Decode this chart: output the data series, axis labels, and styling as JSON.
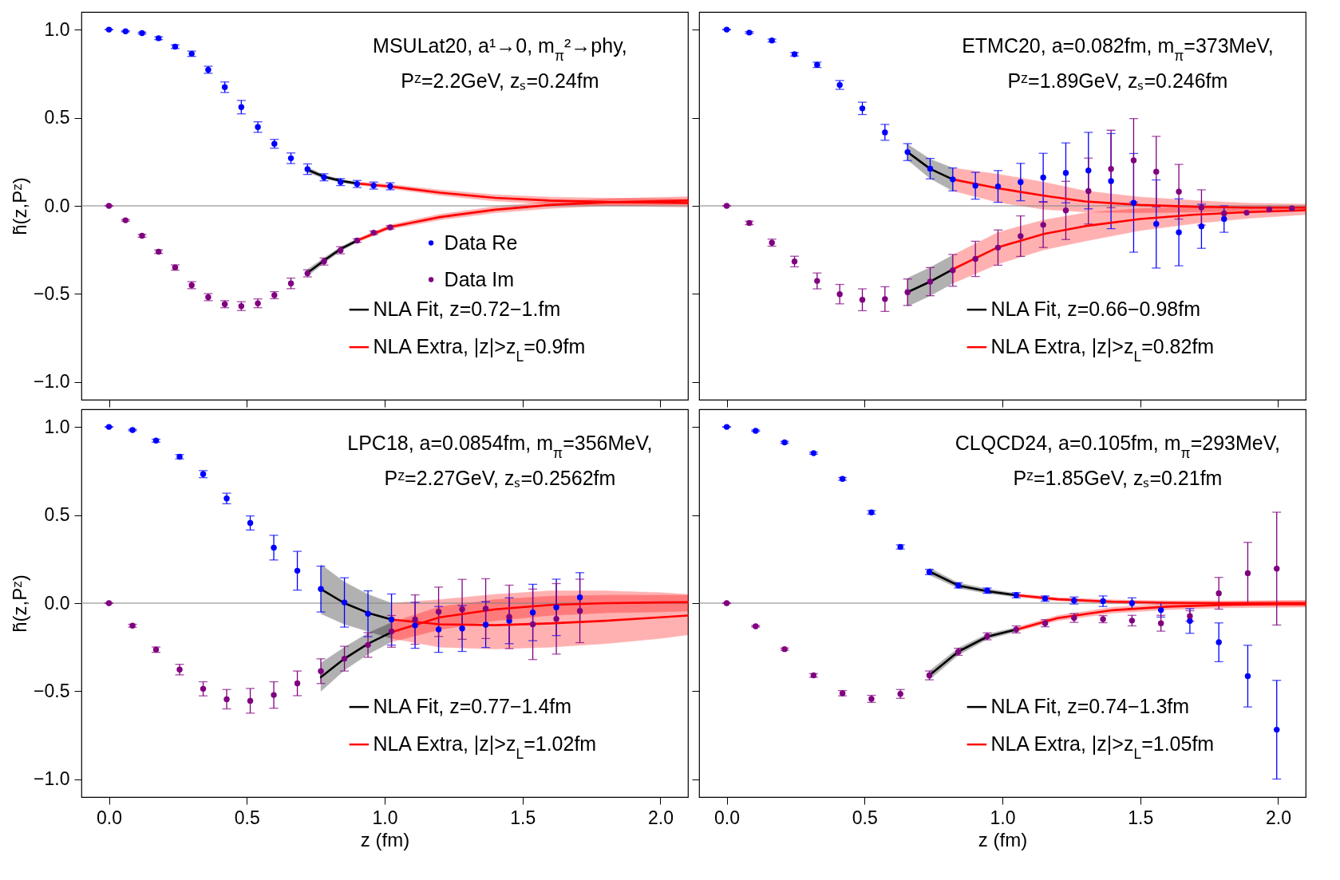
{
  "chart_data": [
    {
      "type": "scatter",
      "legend": "bottom right",
      "tick_labels": "y",
      "ylabel": "h̃(z,Pᶻ)",
      "xlim": [
        -0.1,
        2.1
      ],
      "ylim": [
        -1.1,
        1.1
      ],
      "xticks": [
        0,
        0.5,
        1,
        1.5,
        2
      ],
      "yticks": [
        {
          "value": -1,
          "label": "−1.0"
        },
        {
          "value": -0.5,
          "label": "−0.5"
        },
        {
          "value": 0,
          "label": "0.0"
        },
        {
          "value": 0.5,
          "label": "0.5"
        },
        {
          "value": 1,
          "label": "1.0"
        }
      ],
      "annotations": [
        "MSULat20, a¹→0, m$_{π}$²→phy,",
        "Pᶻ=2.2GeV, zₛ=0.24fm"
      ],
      "ref_lines": [
        {
          "axis": "y",
          "value": 0,
          "color": "#808080"
        }
      ],
      "series": [
        {
          "name": "Data Re",
          "type": "scatter",
          "marker": "circle",
          "color": "#0000ff",
          "x": [
            0,
            0.06,
            0.12,
            0.18,
            0.24,
            0.3,
            0.36,
            0.42,
            0.48,
            0.54,
            0.6,
            0.66,
            0.72,
            0.78,
            0.84,
            0.9,
            0.96,
            1.02
          ],
          "values": [
            1.0,
            0.99,
            0.98,
            0.951,
            0.903,
            0.863,
            0.772,
            0.673,
            0.56,
            0.447,
            0.352,
            0.27,
            0.208,
            0.162,
            0.135,
            0.124,
            0.115,
            0.111
          ],
          "errors": [
            0,
            0.003,
            0.005,
            0.008,
            0.01,
            0.015,
            0.02,
            0.03,
            0.038,
            0.03,
            0.025,
            0.03,
            0.03,
            0.02,
            0.02,
            0.02,
            0.02,
            0.02
          ]
        },
        {
          "name": "Data Im",
          "type": "scatter",
          "marker": "circle",
          "color": "#800080",
          "x": [
            0,
            0.06,
            0.12,
            0.18,
            0.24,
            0.3,
            0.36,
            0.42,
            0.48,
            0.54,
            0.6,
            0.66,
            0.72,
            0.78,
            0.84,
            0.9,
            0.96,
            1.02
          ],
          "values": [
            0,
            -0.082,
            -0.17,
            -0.26,
            -0.35,
            -0.45,
            -0.518,
            -0.558,
            -0.569,
            -0.553,
            -0.507,
            -0.44,
            -0.383,
            -0.316,
            -0.252,
            -0.197,
            -0.153,
            -0.122
          ],
          "errors": [
            0,
            0.005,
            0.008,
            0.01,
            0.015,
            0.02,
            0.02,
            0.02,
            0.025,
            0.025,
            0.02,
            0.03,
            0.02,
            0.02,
            0.02,
            0.01,
            0.01,
            0.01
          ]
        },
        {
          "name": "NLA Fit, z=0.72−1.fm",
          "type": "line",
          "color": "#000000",
          "x": [
            0.72,
            0.78,
            0.84,
            0.9
          ],
          "values": [
            0.205,
            0.165,
            0.142,
            0.127
          ],
          "lower": [
            0.19,
            0.155,
            0.133,
            0.118
          ],
          "upper": [
            0.22,
            0.175,
            0.151,
            0.136
          ]
        },
        {
          "type": "line",
          "color": "#000000",
          "x": [
            0.72,
            0.78,
            0.84,
            0.9
          ],
          "values": [
            -0.38,
            -0.31,
            -0.245,
            -0.197
          ],
          "lower": [
            -0.4,
            -0.325,
            -0.257,
            -0.207
          ],
          "upper": [
            -0.36,
            -0.295,
            -0.233,
            -0.187
          ]
        },
        {
          "name": "NLA Extra, |z|>z$_{L}$=0.9fm",
          "type": "line",
          "color": "#ff0000",
          "x": [
            0.9,
            1.02,
            1.2,
            1.4,
            1.6,
            1.8,
            2.0,
            2.1
          ],
          "values": [
            0.127,
            0.11,
            0.075,
            0.045,
            0.03,
            0.022,
            0.018,
            0.016
          ],
          "lower": [
            0.118,
            0.098,
            0.06,
            0.027,
            0.01,
            0.0,
            -0.005,
            -0.007
          ],
          "upper": [
            0.136,
            0.122,
            0.09,
            0.063,
            0.05,
            0.044,
            0.041,
            0.039
          ]
        },
        {
          "type": "line",
          "color": "#ff0000",
          "x": [
            0.9,
            1.02,
            1.2,
            1.4,
            1.6,
            1.8,
            2.0,
            2.1
          ],
          "values": [
            -0.197,
            -0.12,
            -0.064,
            -0.022,
            0.005,
            0.02,
            0.027,
            0.03
          ],
          "lower": [
            -0.207,
            -0.132,
            -0.08,
            -0.04,
            -0.015,
            0.0,
            0.005,
            0.008
          ],
          "upper": [
            -0.187,
            -0.108,
            -0.048,
            -0.004,
            0.025,
            0.04,
            0.049,
            0.052
          ]
        }
      ]
    },
    {
      "type": "scatter",
      "legend": "bottom right",
      "tick_labels": false,
      "xlim": [
        -0.1,
        2.1
      ],
      "ylim": [
        -1.1,
        1.1
      ],
      "xticks": [
        0,
        0.5,
        1,
        1.5,
        2
      ],
      "yticks": [
        -1,
        -0.5,
        0,
        0.5,
        1
      ],
      "annotations": [
        "ETMC20, a=0.082fm, m$_{π}$=373MeV,",
        "Pᶻ=1.89GeV, zₛ=0.246fm"
      ],
      "ref_lines": [
        {
          "axis": "y",
          "value": 0,
          "color": "#808080"
        }
      ],
      "series": [
        {
          "type": "scatter",
          "marker": "circle",
          "color": "#0000ff",
          "x": [
            0,
            0.082,
            0.164,
            0.246,
            0.328,
            0.41,
            0.492,
            0.574,
            0.656,
            0.738,
            0.82,
            0.902,
            0.984,
            1.066,
            1.148,
            1.23,
            1.312,
            1.394,
            1.476,
            1.558,
            1.64,
            1.722,
            1.804
          ],
          "values": [
            1.0,
            0.983,
            0.938,
            0.86,
            0.8,
            0.686,
            0.553,
            0.417,
            0.305,
            0.211,
            0.15,
            0.114,
            0.11,
            0.135,
            0.161,
            0.187,
            0.2,
            0.14,
            0.017,
            -0.103,
            -0.15,
            -0.116,
            -0.075
          ],
          "errors": [
            0,
            0.005,
            0.008,
            0.01,
            0.015,
            0.025,
            0.035,
            0.045,
            0.048,
            0.058,
            0.065,
            0.076,
            0.09,
            0.106,
            0.137,
            0.17,
            0.217,
            0.27,
            0.28,
            0.25,
            0.19,
            0.125,
            0.075
          ]
        },
        {
          "type": "scatter",
          "marker": "circle",
          "color": "#800080",
          "x": [
            0,
            0.082,
            0.164,
            0.246,
            0.328,
            0.41,
            0.492,
            0.574,
            0.656,
            0.738,
            0.82,
            0.902,
            0.984,
            1.066,
            1.148,
            1.23,
            1.312,
            1.394,
            1.476,
            1.558,
            1.64,
            1.722,
            1.804,
            1.886,
            1.968,
            2.05
          ],
          "values": [
            0,
            -0.097,
            -0.209,
            -0.316,
            -0.426,
            -0.501,
            -0.533,
            -0.529,
            -0.49,
            -0.43,
            -0.366,
            -0.301,
            -0.237,
            -0.172,
            -0.108,
            -0.026,
            0.084,
            0.209,
            0.258,
            0.194,
            0.08,
            -0.009,
            -0.043,
            -0.039,
            -0.02,
            -0.015
          ],
          "errors": [
            0,
            0.01,
            0.02,
            0.03,
            0.045,
            0.055,
            0.062,
            0.07,
            0.075,
            0.08,
            0.09,
            0.1,
            0.1,
            0.115,
            0.128,
            0.165,
            0.187,
            0.22,
            0.237,
            0.2,
            0.155,
            0.1,
            null,
            null,
            null,
            null
          ]
        },
        {
          "name": "NLA Fit, z=0.66−0.98fm",
          "type": "line",
          "color": "#000000",
          "x": [
            0.656,
            0.738,
            0.82
          ],
          "values": [
            0.305,
            0.21,
            0.15
          ],
          "lower": [
            0.26,
            0.155,
            0.085
          ],
          "upper": [
            0.35,
            0.265,
            0.215
          ]
        },
        {
          "type": "line",
          "color": "#000000",
          "x": [
            0.656,
            0.738,
            0.82
          ],
          "values": [
            -0.49,
            -0.43,
            -0.36
          ],
          "lower": [
            -0.57,
            -0.51,
            -0.44
          ],
          "upper": [
            -0.41,
            -0.35,
            -0.28
          ]
        },
        {
          "name": "NLA Extra, |z|>z$_{L}$=0.82fm",
          "type": "line",
          "color": "#ff0000",
          "x": [
            0.82,
            0.984,
            1.15,
            1.3,
            1.5,
            1.7,
            1.9,
            2.1
          ],
          "values": [
            0.15,
            0.1,
            0.058,
            0.025,
            0.005,
            -0.005,
            -0.01,
            -0.01
          ],
          "lower": [
            0.085,
            0.02,
            -0.02,
            -0.035,
            -0.04,
            -0.035,
            -0.03,
            -0.025
          ],
          "upper": [
            0.215,
            0.18,
            0.135,
            0.085,
            0.05,
            0.03,
            0.015,
            0.01
          ]
        },
        {
          "type": "line",
          "color": "#ff0000",
          "x": [
            0.82,
            0.984,
            1.15,
            1.3,
            1.5,
            1.7,
            1.9,
            2.1
          ],
          "values": [
            -0.36,
            -0.235,
            -0.16,
            -0.115,
            -0.075,
            -0.05,
            -0.035,
            -0.025
          ],
          "lower": [
            -0.44,
            -0.33,
            -0.25,
            -0.2,
            -0.14,
            -0.1,
            -0.07,
            -0.05
          ],
          "upper": [
            -0.28,
            -0.15,
            -0.08,
            -0.04,
            -0.015,
            -0.005,
            0.0,
            0.0
          ]
        }
      ]
    },
    {
      "type": "scatter",
      "legend": "bottom right",
      "xlabel": "z (fm)",
      "ylabel": "h̃(z,Pᶻ)",
      "xlim": [
        -0.1,
        2.1
      ],
      "ylim": [
        -1.1,
        1.1
      ],
      "xticks": [
        {
          "value": 0,
          "label": "0.0"
        },
        {
          "value": 0.5,
          "label": "0.5"
        },
        {
          "value": 1,
          "label": "1.0"
        },
        {
          "value": 1.5,
          "label": "1.5"
        },
        {
          "value": 2,
          "label": "2.0"
        }
      ],
      "yticks": [
        {
          "value": -1,
          "label": "−1.0"
        },
        {
          "value": -0.5,
          "label": "−0.5"
        },
        {
          "value": 0,
          "label": "0.0"
        },
        {
          "value": 0.5,
          "label": "0.5"
        },
        {
          "value": 1,
          "label": "1.0"
        }
      ],
      "annotations": [
        "LPC18, a=0.0854fm, m$_{π}$=356MeV,",
        "Pᶻ=2.27GeV, zₛ=0.2562fm"
      ],
      "ref_lines": [
        {
          "axis": "y",
          "value": 0,
          "color": "#808080"
        }
      ],
      "series": [
        {
          "type": "scatter",
          "marker": "circle",
          "color": "#0000ff",
          "x": [
            0,
            0.0854,
            0.1708,
            0.2562,
            0.3416,
            0.427,
            0.5124,
            0.5978,
            0.6832,
            0.7686,
            0.854,
            0.9394,
            1.0248,
            1.1102,
            1.1956,
            1.281,
            1.3664,
            1.4518,
            1.5372,
            1.6226,
            1.708
          ],
          "values": [
            1.0,
            0.982,
            0.922,
            0.831,
            0.732,
            0.594,
            0.455,
            0.315,
            0.184,
            0.08,
            0.004,
            -0.06,
            -0.093,
            -0.126,
            -0.149,
            -0.144,
            -0.122,
            -0.1,
            -0.053,
            -0.024,
            0.033
          ],
          "errors": [
            0,
            0.004,
            0.008,
            0.012,
            0.02,
            0.03,
            0.04,
            0.07,
            0.11,
            0.13,
            0.14,
            0.13,
            0.145,
            0.13,
            0.13,
            0.13,
            0.13,
            0.13,
            0.16,
            0.16,
            0.14
          ]
        },
        {
          "type": "scatter",
          "marker": "circle",
          "color": "#800080",
          "x": [
            0,
            0.0854,
            0.1708,
            0.2562,
            0.3416,
            0.427,
            0.5124,
            0.5978,
            0.6832,
            0.7686,
            0.854,
            0.9394,
            1.0248,
            1.1102,
            1.1956,
            1.281,
            1.3664,
            1.4518,
            1.5372,
            1.6226,
            1.708
          ],
          "values": [
            0,
            -0.128,
            -0.264,
            -0.377,
            -0.486,
            -0.545,
            -0.554,
            -0.521,
            -0.455,
            -0.386,
            -0.315,
            -0.237,
            -0.16,
            -0.093,
            -0.049,
            -0.035,
            -0.031,
            -0.078,
            -0.12,
            -0.089,
            -0.044
          ],
          "errors": [
            0,
            0.008,
            0.015,
            0.03,
            0.04,
            0.055,
            0.07,
            0.075,
            0.07,
            0.07,
            0.07,
            0.07,
            0.09,
            0.14,
            0.14,
            0.17,
            0.17,
            0.18,
            0.2,
            0.2,
            0.18
          ]
        },
        {
          "name": "NLA Fit, z=0.77−1.4fm",
          "type": "line",
          "color": "#000000",
          "x": [
            0.7686,
            0.854,
            0.9394,
            1.0248
          ],
          "values": [
            0.08,
            0.0,
            -0.055,
            -0.093
          ],
          "lower": [
            -0.06,
            -0.12,
            -0.16,
            -0.2
          ],
          "upper": [
            0.22,
            0.12,
            0.05,
            0.0
          ]
        },
        {
          "type": "line",
          "color": "#000000",
          "x": [
            0.7686,
            0.854,
            0.9394,
            1.0248
          ],
          "values": [
            -0.42,
            -0.315,
            -0.23,
            -0.165
          ],
          "lower": [
            -0.5,
            -0.38,
            -0.29,
            -0.22
          ],
          "upper": [
            -0.34,
            -0.25,
            -0.17,
            -0.11
          ]
        },
        {
          "name": "NLA Extra, |z|>z$_{L}$=1.02fm",
          "type": "line",
          "color": "#ff0000",
          "x": [
            1.0248,
            1.2,
            1.4,
            1.6,
            1.8,
            2.0,
            2.1
          ],
          "values": [
            -0.093,
            -0.12,
            -0.125,
            -0.115,
            -0.1,
            -0.08,
            -0.07
          ],
          "lower": [
            -0.2,
            -0.25,
            -0.26,
            -0.25,
            -0.23,
            -0.2,
            -0.18
          ],
          "upper": [
            0.0,
            0.02,
            0.05,
            0.07,
            0.07,
            0.06,
            0.05
          ]
        },
        {
          "type": "line",
          "color": "#ff0000",
          "x": [
            1.0248,
            1.2,
            1.4,
            1.6,
            1.8,
            2.0,
            2.1
          ],
          "values": [
            -0.165,
            -0.08,
            -0.035,
            -0.01,
            0.0,
            0.004,
            0.005
          ],
          "lower": [
            -0.22,
            -0.15,
            -0.1,
            -0.07,
            -0.055,
            -0.05,
            -0.045
          ],
          "upper": [
            -0.11,
            -0.02,
            0.02,
            0.04,
            0.045,
            0.045,
            0.045
          ]
        }
      ]
    },
    {
      "type": "scatter",
      "legend": "bottom right",
      "tick_labels": "x",
      "xlabel": "z (fm)",
      "xlim": [
        -0.1,
        2.1
      ],
      "ylim": [
        -1.1,
        1.1
      ],
      "xticks": [
        {
          "value": 0,
          "label": "0.0"
        },
        {
          "value": 0.5,
          "label": "0.5"
        },
        {
          "value": 1,
          "label": "1.0"
        },
        {
          "value": 1.5,
          "label": "1.5"
        },
        {
          "value": 2,
          "label": "2.0"
        }
      ],
      "yticks": [
        -1,
        -0.5,
        0,
        0.5,
        1
      ],
      "annotations": [
        "CLQCD24, a=0.105fm, m$_{π}$=293MeV,",
        "Pᶻ=1.85GeV, zₛ=0.21fm"
      ],
      "ref_lines": [
        {
          "axis": "y",
          "value": 0,
          "color": "#808080"
        }
      ],
      "series": [
        {
          "type": "scatter",
          "marker": "circle",
          "color": "#0000ff",
          "x": [
            0,
            0.105,
            0.21,
            0.315,
            0.42,
            0.525,
            0.63,
            0.735,
            0.84,
            0.945,
            1.05,
            1.155,
            1.26,
            1.365,
            1.47,
            1.575,
            1.68,
            1.785,
            1.89,
            1.995
          ],
          "values": [
            1.0,
            0.978,
            0.912,
            0.851,
            0.705,
            0.515,
            0.319,
            0.177,
            0.101,
            0.071,
            0.045,
            0.026,
            0.015,
            0.011,
            0.0,
            -0.039,
            -0.101,
            -0.222,
            -0.414,
            -0.718
          ],
          "errors": [
            0,
            0.004,
            0.006,
            0.006,
            0.008,
            0.01,
            0.012,
            0.015,
            0.015,
            0.015,
            0.015,
            0.015,
            0.02,
            0.03,
            0.03,
            0.04,
            0.07,
            0.11,
            0.175,
            0.28
          ]
        },
        {
          "type": "scatter",
          "marker": "circle",
          "color": "#800080",
          "x": [
            0,
            0.105,
            0.21,
            0.315,
            0.42,
            0.525,
            0.63,
            0.735,
            0.84,
            0.945,
            1.05,
            1.155,
            1.26,
            1.365,
            1.47,
            1.575,
            1.68,
            1.785,
            1.89,
            1.995
          ],
          "values": [
            0,
            -0.131,
            -0.261,
            -0.41,
            -0.511,
            -0.543,
            -0.515,
            -0.41,
            -0.276,
            -0.188,
            -0.149,
            -0.114,
            -0.084,
            -0.091,
            -0.099,
            -0.114,
            -0.073,
            0.056,
            0.17,
            0.196
          ],
          "errors": [
            0,
            0.004,
            0.006,
            0.01,
            0.015,
            0.02,
            0.025,
            0.025,
            0.02,
            0.02,
            0.02,
            0.02,
            0.025,
            0.02,
            0.03,
            0.045,
            0.03,
            0.09,
            0.175,
            0.32
          ]
        },
        {
          "name": "NLA Fit, z=0.74−1.3fm",
          "type": "line",
          "color": "#000000",
          "x": [
            0.735,
            0.84,
            0.945,
            1.05
          ],
          "values": [
            0.18,
            0.1,
            0.068,
            0.045
          ],
          "lower": [
            0.16,
            0.085,
            0.055,
            0.035
          ],
          "upper": [
            0.2,
            0.115,
            0.081,
            0.055
          ]
        },
        {
          "type": "line",
          "color": "#000000",
          "x": [
            0.735,
            0.84,
            0.945,
            1.05
          ],
          "values": [
            -0.41,
            -0.275,
            -0.19,
            -0.15
          ],
          "lower": [
            -0.435,
            -0.295,
            -0.205,
            -0.162
          ],
          "upper": [
            -0.385,
            -0.255,
            -0.175,
            -0.138
          ]
        },
        {
          "name": "NLA Extra, |z|>z$_{L}$=1.05fm",
          "type": "line",
          "color": "#ff0000",
          "x": [
            1.05,
            1.2,
            1.4,
            1.6,
            1.8,
            2.0,
            2.1
          ],
          "values": [
            0.045,
            0.022,
            0.008,
            0.002,
            0.0,
            0.0,
            0.0
          ],
          "lower": [
            0.035,
            0.012,
            -0.003,
            -0.01,
            -0.013,
            -0.015,
            -0.016
          ],
          "upper": [
            0.055,
            0.032,
            0.019,
            0.014,
            0.013,
            0.015,
            0.016
          ]
        },
        {
          "type": "line",
          "color": "#ff0000",
          "x": [
            1.05,
            1.2,
            1.4,
            1.6,
            1.8,
            2.0,
            2.1
          ],
          "values": [
            -0.15,
            -0.085,
            -0.04,
            -0.02,
            -0.01,
            -0.006,
            -0.005
          ],
          "lower": [
            -0.162,
            -0.1,
            -0.057,
            -0.037,
            -0.027,
            -0.024,
            -0.023
          ],
          "upper": [
            -0.138,
            -0.07,
            -0.023,
            -0.003,
            0.007,
            0.012,
            0.013
          ]
        }
      ]
    }
  ]
}
